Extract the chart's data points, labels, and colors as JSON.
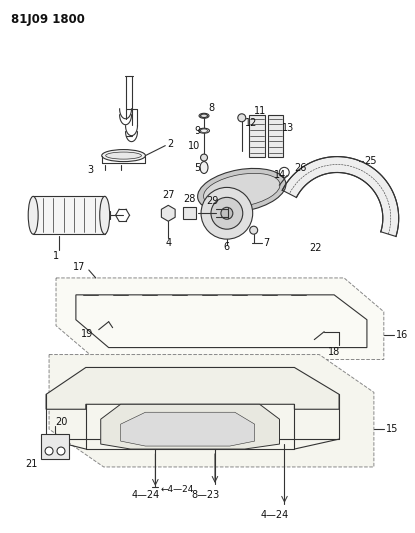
{
  "title": "81J09 1800",
  "bg_color": "#ffffff",
  "line_color": "#333333",
  "label_color": "#111111",
  "title_fontsize": 8.5,
  "label_fontsize": 7.0
}
